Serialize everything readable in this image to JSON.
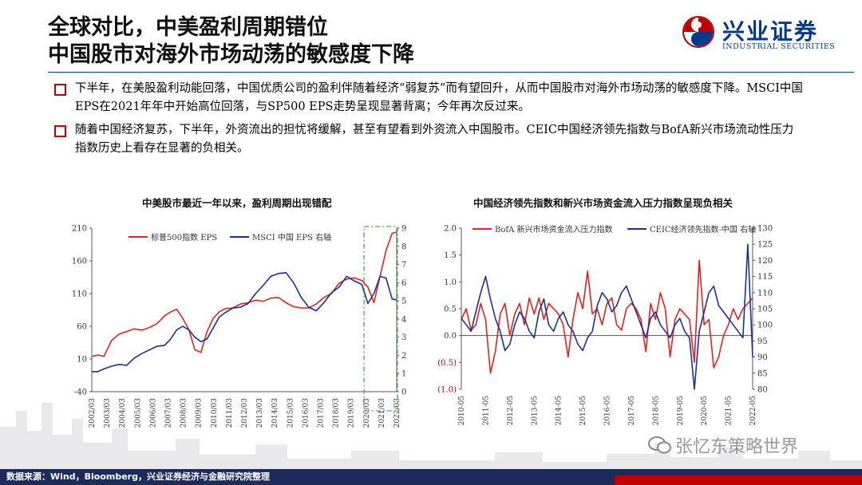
{
  "header": {
    "title_line1": "全球对比，中美盈利周期错位",
    "title_line2": "中国股市对海外市场动荡的敏感度下降"
  },
  "logo": {
    "cn": "兴业证券",
    "en": "INDUSTRIAL SECURITIES"
  },
  "bullets": [
    "下半年，在美股盈利动能回落，中国优质公司的盈利伴随着经济“弱复苏”而有望回升，从而中国股市对海外市场动荡的敏感度下降。MSCI中国 EPS在2021年年中开始高位回落，与SP500 EPS走势呈现显著背离；今年再次反过来。",
    "随着中国经济复苏，下半年，外资流出的担忧将缓解，甚至有望看到外资流入中国股市。CEIC中国经济领先指数与BofA新兴市场流动性压力指数历史上看存在显著的负相关。"
  ],
  "footer": {
    "source": "数据来源：Wind，Bloomberg，兴业证券经济与金融研究院整理"
  },
  "watermark": "张忆东策略世界",
  "colors": {
    "navy": "#1d2b5c",
    "red": "#e8201f",
    "blue": "#1a2f9e",
    "green": "#44b044"
  },
  "chart_data": [
    {
      "type": "line",
      "title": "中美股市最近一年以来，盈利周期出现错配",
      "x_ticks": [
        "2002/03",
        "2003/03",
        "2004/03",
        "2005/03",
        "2006/03",
        "2007/03",
        "2008/03",
        "2009/03",
        "2010/03",
        "2011/03",
        "2012/03",
        "2013/03",
        "2014/03",
        "2015/03",
        "2016/03",
        "2017/03",
        "2018/03",
        "2019/03",
        "2020/03",
        "2021/03",
        "2022/03"
      ],
      "left_axis": {
        "ticks": [
          "-40",
          "10",
          "60",
          "110",
          "160",
          "210"
        ],
        "ylim": [
          -40,
          210
        ]
      },
      "right_axis": {
        "ticks": [
          "0",
          "1",
          "2",
          "3",
          "4",
          "5",
          "6",
          "7",
          "8",
          "9"
        ],
        "ylim": [
          0,
          9
        ]
      },
      "highlight": "dashed green box around 2020/03–2022/03",
      "series": [
        {
          "name": "标普500指数 EPS",
          "axis": "left",
          "color": "#e8201f",
          "x": [
            2002.2,
            2002.6,
            2003.0,
            2003.5,
            2004.0,
            2004.5,
            2005.0,
            2005.5,
            2006.0,
            2006.5,
            2007.0,
            2007.4,
            2007.8,
            2008.2,
            2008.6,
            2009.0,
            2009.4,
            2009.8,
            2010.2,
            2010.6,
            2011.0,
            2011.5,
            2012.0,
            2012.5,
            2013.0,
            2013.5,
            2014.0,
            2014.5,
            2015.0,
            2015.5,
            2016.0,
            2016.5,
            2017.0,
            2017.5,
            2018.0,
            2018.5,
            2019.0,
            2019.5,
            2020.0,
            2020.4,
            2020.8,
            2021.2,
            2021.6,
            2022.0,
            2022.3
          ],
          "values": [
            14,
            16,
            14,
            38,
            48,
            52,
            56,
            54,
            58,
            64,
            76,
            82,
            86,
            72,
            55,
            24,
            20,
            52,
            72,
            82,
            87,
            88,
            94,
            96,
            100,
            98,
            103,
            104,
            96,
            90,
            88,
            88,
            94,
            104,
            110,
            126,
            132,
            134,
            130,
            120,
            96,
            136,
            176,
            202,
            204
          ]
        },
        {
          "name": "MSCI 中国 EPS 右轴",
          "axis": "right",
          "color": "#1a2f9e",
          "x": [
            2002.2,
            2002.6,
            2003.0,
            2003.5,
            2004.0,
            2004.5,
            2005.0,
            2005.5,
            2006.0,
            2006.5,
            2007.0,
            2007.4,
            2007.8,
            2008.2,
            2008.6,
            2009.0,
            2009.4,
            2009.8,
            2010.2,
            2010.6,
            2011.0,
            2011.5,
            2012.0,
            2012.5,
            2013.0,
            2013.5,
            2014.0,
            2014.5,
            2015.0,
            2015.5,
            2016.0,
            2016.5,
            2017.0,
            2017.5,
            2018.0,
            2018.5,
            2019.0,
            2019.5,
            2020.0,
            2020.4,
            2020.8,
            2021.2,
            2021.6,
            2022.0,
            2022.3
          ],
          "values": [
            1.1,
            1.1,
            1.25,
            1.4,
            1.5,
            1.45,
            1.85,
            2.1,
            2.3,
            2.5,
            2.55,
            2.9,
            3.4,
            3.6,
            3.4,
            3.0,
            2.75,
            2.9,
            3.5,
            4.1,
            4.35,
            4.6,
            4.65,
            4.85,
            5.4,
            5.85,
            6.35,
            6.5,
            6.55,
            6.0,
            5.2,
            4.65,
            4.45,
            4.9,
            5.45,
            5.75,
            6.35,
            6.1,
            5.9,
            4.85,
            5.4,
            6.35,
            6.25,
            5.1,
            5.05
          ]
        }
      ]
    },
    {
      "type": "line",
      "title": "中国经济领先指数和新兴市场资金流入压力指数呈现负相关",
      "x_ticks": [
        "2010-05",
        "2011-05",
        "2012-05",
        "2013-05",
        "2014-05",
        "2015-05",
        "2016-05",
        "2017-05",
        "2018-05",
        "2019-05",
        "2020-05",
        "2021-05",
        "2022-05"
      ],
      "left_axis": {
        "ticks": [
          "(1.0)",
          "(0.5)",
          "0.0",
          "0.5",
          "1.0",
          "1.5",
          "2.0"
        ],
        "ylim": [
          -1.0,
          2.0
        ]
      },
      "right_axis": {
        "ticks": [
          "80",
          "85",
          "90",
          "95",
          "100",
          "105",
          "110",
          "115",
          "120",
          "125",
          "130"
        ],
        "ylim": [
          80,
          130
        ]
      },
      "series": [
        {
          "name": "BofA 新兴市场资金流入压力指数",
          "axis": "left",
          "color": "#e8201f",
          "x": [
            2010.4,
            2010.6,
            2010.8,
            2011.0,
            2011.2,
            2011.4,
            2011.6,
            2011.8,
            2012.0,
            2012.2,
            2012.4,
            2012.6,
            2012.8,
            2013.0,
            2013.2,
            2013.4,
            2013.6,
            2013.8,
            2014.0,
            2014.2,
            2014.4,
            2014.6,
            2014.8,
            2015.0,
            2015.2,
            2015.4,
            2015.6,
            2015.8,
            2016.0,
            2016.2,
            2016.4,
            2016.6,
            2016.8,
            2017.0,
            2017.2,
            2017.4,
            2017.6,
            2017.8,
            2018.0,
            2018.2,
            2018.4,
            2018.6,
            2018.8,
            2019.0,
            2019.2,
            2019.4,
            2019.6,
            2019.8,
            2020.0,
            2020.2,
            2020.4,
            2020.6,
            2020.8,
            2021.0,
            2021.2,
            2021.4,
            2021.6,
            2021.8,
            2022.0,
            2022.2,
            2022.4
          ],
          "values": [
            0.3,
            0.5,
            0.1,
            0.2,
            0.6,
            0.3,
            -0.7,
            -0.3,
            0.4,
            0.6,
            0.0,
            0.4,
            0.6,
            0.2,
            0.7,
            0.4,
            0.7,
            0.3,
            0.6,
            0.5,
            0.4,
            0.2,
            -0.4,
            0.3,
            0.8,
            0.5,
            1.2,
            0.4,
            0.5,
            0.2,
            0.6,
            0.7,
            0.2,
            0.1,
            0.5,
            0.6,
            0.5,
            0.3,
            -0.3,
            0.6,
            0.3,
            0.8,
            0.5,
            -0.4,
            0.3,
            0.5,
            0.4,
            0.3,
            -0.5,
            1.4,
            0.2,
            0.3,
            -0.6,
            -0.4,
            0.0,
            0.2,
            0.5,
            0.3,
            0.5,
            0.6,
            0.7
          ]
        },
        {
          "name": "CEIC经济领先指数-中国 右轴",
          "axis": "right",
          "color": "#1a2f9e",
          "x": [
            2010.4,
            2010.6,
            2010.8,
            2011.0,
            2011.2,
            2011.4,
            2011.6,
            2011.8,
            2012.0,
            2012.2,
            2012.4,
            2012.6,
            2012.8,
            2013.0,
            2013.2,
            2013.4,
            2013.6,
            2013.8,
            2014.0,
            2014.2,
            2014.4,
            2014.6,
            2014.8,
            2015.0,
            2015.2,
            2015.4,
            2015.6,
            2015.8,
            2016.0,
            2016.2,
            2016.4,
            2016.6,
            2016.8,
            2017.0,
            2017.2,
            2017.4,
            2017.6,
            2017.8,
            2018.0,
            2018.2,
            2018.4,
            2018.6,
            2018.8,
            2019.0,
            2019.2,
            2019.4,
            2019.6,
            2019.8,
            2020.0,
            2020.2,
            2020.4,
            2020.6,
            2020.8,
            2021.0,
            2021.2,
            2021.4,
            2021.6,
            2021.8,
            2022.0,
            2022.2,
            2022.4
          ],
          "values": [
            102,
            100,
            98,
            104,
            110,
            115,
            108,
            102,
            98,
            92,
            94,
            100,
            104,
            102,
            98,
            96,
            104,
            108,
            100,
            98,
            102,
            104,
            100,
            98,
            94,
            92,
            96,
            98,
            106,
            110,
            108,
            104,
            106,
            110,
            112,
            108,
            104,
            100,
            96,
            102,
            104,
            100,
            98,
            96,
            100,
            102,
            98,
            96,
            80,
            98,
            104,
            110,
            112,
            106,
            104,
            102,
            100,
            98,
            96,
            125,
            90
          ]
        }
      ]
    }
  ]
}
